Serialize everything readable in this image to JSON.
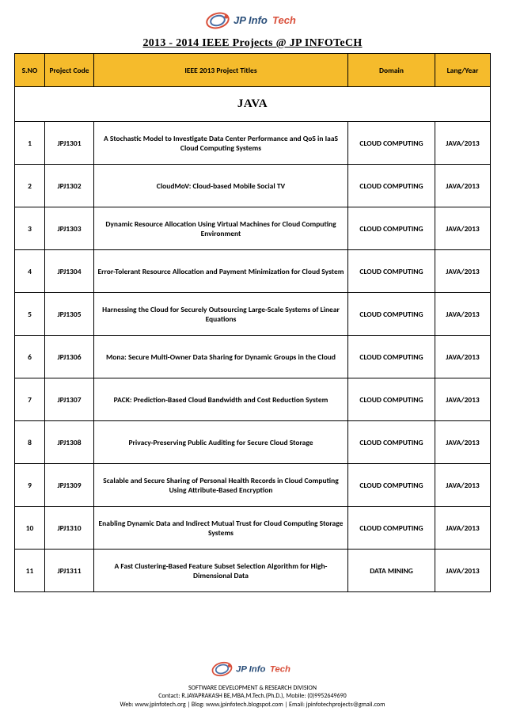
{
  "company": "JP Info Tech",
  "title": "2013 - 2014 IEEE Projects @ JP INFOTeCH",
  "headers": {
    "sno": "S.NO",
    "code": "Project Code",
    "ptitle": "IEEE 2013 Project Titles",
    "domain": "Domain",
    "lang": "Lang/Year"
  },
  "section": "JAVA",
  "rows": [
    {
      "sno": "1",
      "code": "JPJ1301",
      "title": "A Stochastic Model to Investigate Data Center Performance and QoS in IaaS Cloud Computing Systems",
      "domain": "CLOUD COMPUTING",
      "lang": "JAVA/2013"
    },
    {
      "sno": "2",
      "code": "JPJ1302",
      "title": "CloudMoV: Cloud-based Mobile Social TV",
      "domain": "CLOUD COMPUTING",
      "lang": "JAVA/2013"
    },
    {
      "sno": "3",
      "code": "JPJ1303",
      "title": "Dynamic Resource Allocation Using Virtual Machines for Cloud Computing Environment",
      "domain": "CLOUD COMPUTING",
      "lang": "JAVA/2013"
    },
    {
      "sno": "4",
      "code": "JPJ1304",
      "title": "Error-Tolerant Resource Allocation and Payment Minimization for Cloud System",
      "domain": "CLOUD COMPUTING",
      "lang": "JAVA/2013"
    },
    {
      "sno": "5",
      "code": "JPJ1305",
      "title": "Harnessing the Cloud for Securely Outsourcing Large-Scale Systems of Linear Equations",
      "domain": "CLOUD COMPUTING",
      "lang": "JAVA/2013"
    },
    {
      "sno": "6",
      "code": "JPJ1306",
      "title": "Mona: Secure Multi-Owner Data Sharing for Dynamic Groups in the Cloud",
      "domain": "CLOUD COMPUTING",
      "lang": "JAVA/2013"
    },
    {
      "sno": "7",
      "code": "JPJ1307",
      "title": "PACK: Prediction-Based Cloud Bandwidth and Cost Reduction System",
      "domain": "CLOUD COMPUTING",
      "lang": "JAVA/2013"
    },
    {
      "sno": "8",
      "code": "JPJ1308",
      "title": "Privacy-Preserving Public Auditing for Secure Cloud Storage",
      "domain": "CLOUD COMPUTING",
      "lang": "JAVA/2013"
    },
    {
      "sno": "9",
      "code": "JPJ1309",
      "title": "Scalable and Secure Sharing of Personal Health Records in Cloud Computing Using Attribute-Based Encryption",
      "domain": "CLOUD COMPUTING",
      "lang": "JAVA/2013"
    },
    {
      "sno": "10",
      "code": "JPJ1310",
      "title": "Enabling Dynamic Data and Indirect Mutual Trust for Cloud Computing Storage Systems",
      "domain": "CLOUD COMPUTING",
      "lang": "JAVA/2013"
    },
    {
      "sno": "11",
      "code": "JPJ1311",
      "title": "A Fast Clustering-Based Feature Subset Selection Algorithm for High-Dimensional Data",
      "domain": "DATA MINING",
      "lang": "JAVA/2013"
    }
  ],
  "footer": {
    "line1": "SOFTWARE DEVELOPMENT & RESEARCH DIVISION",
    "line2": "Contact: R.JAYAPRAKASH BE,MBA,M.Tech.(Ph.D.),  Mobile: (0)9952649690",
    "line3": "Web: www.jpinfotech.org | Blog: www.jpinfotech.blogspot.com | Email: jpinfotechprojects@gmail.com"
  },
  "logo_colors": {
    "ring_outer": "#d94f3a",
    "ring_inner": "#4a6fa5",
    "text": "#2b4f7a",
    "accent": "#d94f3a"
  }
}
